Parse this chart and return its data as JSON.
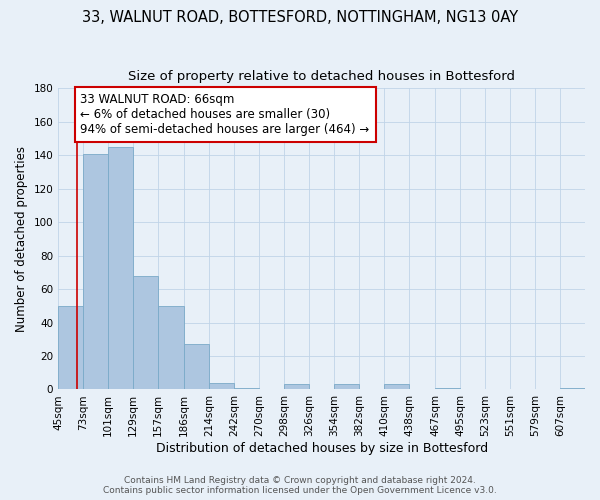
{
  "title": "33, WALNUT ROAD, BOTTESFORD, NOTTINGHAM, NG13 0AY",
  "subtitle": "Size of property relative to detached houses in Bottesford",
  "xlabel": "Distribution of detached houses by size in Bottesford",
  "ylabel": "Number of detached properties",
  "bin_labels": [
    "45sqm",
    "73sqm",
    "101sqm",
    "129sqm",
    "157sqm",
    "186sqm",
    "214sqm",
    "242sqm",
    "270sqm",
    "298sqm",
    "326sqm",
    "354sqm",
    "382sqm",
    "410sqm",
    "438sqm",
    "467sqm",
    "495sqm",
    "523sqm",
    "551sqm",
    "579sqm",
    "607sqm"
  ],
  "bin_edges": [
    45,
    73,
    101,
    129,
    157,
    186,
    214,
    242,
    270,
    298,
    326,
    354,
    382,
    410,
    438,
    467,
    495,
    523,
    551,
    579,
    607
  ],
  "bar_heights": [
    50,
    141,
    145,
    68,
    50,
    27,
    4,
    1,
    0,
    3,
    0,
    3,
    0,
    3,
    0,
    1,
    0,
    0,
    0,
    0,
    1
  ],
  "bar_color": "#adc6e0",
  "bar_edge_color": "#7aaac8",
  "property_line_x": 66,
  "property_line_color": "#cc0000",
  "annotation_line1": "33 WALNUT ROAD: 66sqm",
  "annotation_line2": "← 6% of detached houses are smaller (30)",
  "annotation_line3": "94% of semi-detached houses are larger (464) →",
  "annotation_box_color": "#ffffff",
  "annotation_box_edge": "#cc0000",
  "ylim": [
    0,
    180
  ],
  "yticks": [
    0,
    20,
    40,
    60,
    80,
    100,
    120,
    140,
    160,
    180
  ],
  "background_color": "#e8f0f8",
  "plot_background_color": "#e8f0f8",
  "grid_color": "#c0d4e8",
  "footer_line1": "Contains HM Land Registry data © Crown copyright and database right 2024.",
  "footer_line2": "Contains public sector information licensed under the Open Government Licence v3.0.",
  "title_fontsize": 10.5,
  "subtitle_fontsize": 9.5,
  "xlabel_fontsize": 9,
  "ylabel_fontsize": 8.5,
  "tick_fontsize": 7.5,
  "annotation_fontsize": 8.5,
  "footer_fontsize": 6.5
}
